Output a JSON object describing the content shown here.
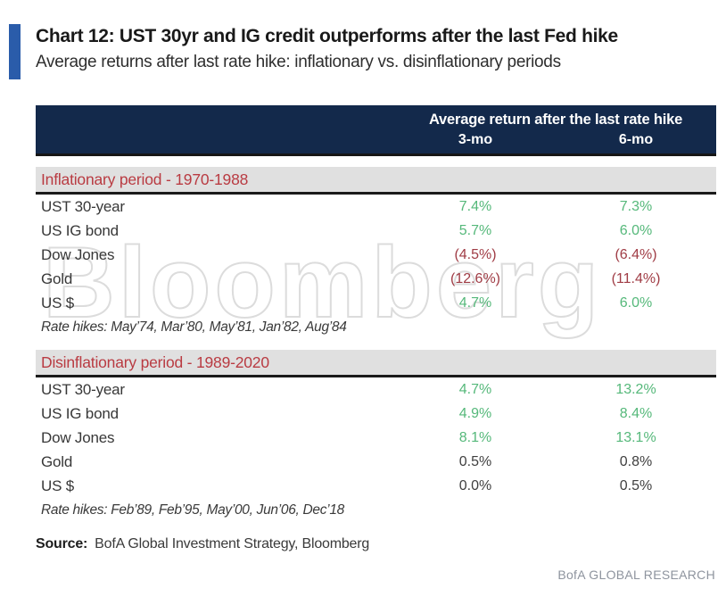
{
  "page": {
    "title": "Chart 12: UST 30yr and IG credit outperforms after the last Fed hike",
    "subtitle": "Average returns after last rate hike: inflationary vs. disinflationary periods",
    "watermark": "Bloomberg",
    "source_label": "Source:",
    "source_text": "BofA Global Investment Strategy, Bloomberg",
    "brand": "BofA GLOBAL RESEARCH",
    "colors": {
      "accent_blue": "#2a5caa",
      "header_navy": "#13294b",
      "section_red": "#b93b42",
      "positive_green": "#55b87a",
      "negative_red": "#a03c45",
      "neutral_dark": "#3f3f3f",
      "band_gray": "#e0e0e0"
    }
  },
  "table": {
    "header": {
      "title": "Average return after the last rate hike",
      "col_3mo": "3-mo",
      "col_6mo": "6-mo"
    },
    "sections": [
      {
        "label": "Inflationary period - 1970-1988",
        "rows": [
          {
            "label": "UST 30-year",
            "v3": "7.4%",
            "v6": "7.3%",
            "tone": "green"
          },
          {
            "label": "US IG bond",
            "v3": "5.7%",
            "v6": "6.0%",
            "tone": "green"
          },
          {
            "label": "Dow Jones",
            "v3": "(4.5%)",
            "v6": "(6.4%)",
            "tone": "red"
          },
          {
            "label": "Gold",
            "v3": "(12.6%)",
            "v6": "(11.4%)",
            "tone": "red"
          },
          {
            "label": "US $",
            "v3": "4.7%",
            "v6": "6.0%",
            "tone": "green"
          }
        ],
        "note": "Rate hikes: May’74, Mar’80, May’81, Jan’82, Aug’84"
      },
      {
        "label": "Disinflationary period - 1989-2020",
        "rows": [
          {
            "label": "UST 30-year",
            "v3": "4.7%",
            "v6": "13.2%",
            "tone": "green"
          },
          {
            "label": "US IG bond",
            "v3": "4.9%",
            "v6": "8.4%",
            "tone": "green"
          },
          {
            "label": "Dow Jones",
            "v3": "8.1%",
            "v6": "13.1%",
            "tone": "green"
          },
          {
            "label": "Gold",
            "v3": "0.5%",
            "v6": "0.8%",
            "tone": "neutral"
          },
          {
            "label": "US $",
            "v3": "0.0%",
            "v6": "0.5%",
            "tone": "neutral"
          }
        ],
        "note": "Rate hikes: Feb’89, Feb’95, May’00, Jun’06, Dec’18"
      }
    ]
  },
  "chart_data": {
    "type": "table",
    "title": "Average return after the last rate hike",
    "columns": [
      "3-mo",
      "6-mo"
    ],
    "sections": [
      {
        "name": "Inflationary period - 1970-1988",
        "rate_hikes": [
          "May'74",
          "Mar'80",
          "May'81",
          "Jan'82",
          "Aug'84"
        ],
        "rows": [
          {
            "asset": "UST 30-year",
            "return_3mo_pct": 7.4,
            "return_6mo_pct": 7.3
          },
          {
            "asset": "US IG bond",
            "return_3mo_pct": 5.7,
            "return_6mo_pct": 6.0
          },
          {
            "asset": "Dow Jones",
            "return_3mo_pct": -4.5,
            "return_6mo_pct": -6.4
          },
          {
            "asset": "Gold",
            "return_3mo_pct": -12.6,
            "return_6mo_pct": -11.4
          },
          {
            "asset": "US $",
            "return_3mo_pct": 4.7,
            "return_6mo_pct": 6.0
          }
        ]
      },
      {
        "name": "Disinflationary period - 1989-2020",
        "rate_hikes": [
          "Feb'89",
          "Feb'95",
          "May'00",
          "Jun'06",
          "Dec'18"
        ],
        "rows": [
          {
            "asset": "UST 30-year",
            "return_3mo_pct": 4.7,
            "return_6mo_pct": 13.2
          },
          {
            "asset": "US IG bond",
            "return_3mo_pct": 4.9,
            "return_6mo_pct": 8.4
          },
          {
            "asset": "Dow Jones",
            "return_3mo_pct": 8.1,
            "return_6mo_pct": 13.1
          },
          {
            "asset": "Gold",
            "return_3mo_pct": 0.5,
            "return_6mo_pct": 0.8
          },
          {
            "asset": "US $",
            "return_3mo_pct": 0.0,
            "return_6mo_pct": 0.5
          }
        ]
      }
    ]
  }
}
